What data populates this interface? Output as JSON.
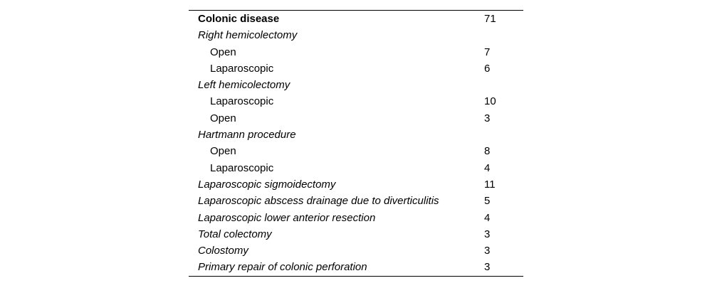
{
  "table": {
    "rows": [
      {
        "label": "Colonic disease",
        "value": "71",
        "level": "header"
      },
      {
        "label": "Right hemicolectomy",
        "value": "",
        "level": "group"
      },
      {
        "label": "Open",
        "value": "7",
        "level": "item"
      },
      {
        "label": "Laparoscopic",
        "value": "6",
        "level": "item"
      },
      {
        "label": "Left hemicolectomy",
        "value": "",
        "level": "group"
      },
      {
        "label": "Laparoscopic",
        "value": "10",
        "level": "item"
      },
      {
        "label": "Open",
        "value": "3",
        "level": "item"
      },
      {
        "label": "Hartmann procedure",
        "value": "",
        "level": "group"
      },
      {
        "label": "Open",
        "value": "8",
        "level": "item"
      },
      {
        "label": "Laparoscopic",
        "value": "4",
        "level": "item"
      },
      {
        "label": "Laparoscopic sigmoidectomy",
        "value": "11",
        "level": "group"
      },
      {
        "label": "Laparoscopic abscess drainage due to diverticulitis",
        "value": "5",
        "level": "group"
      },
      {
        "label": "Laparoscopic lower anterior resection",
        "value": "4",
        "level": "group"
      },
      {
        "label": "Total colectomy",
        "value": "3",
        "level": "group"
      },
      {
        "label": "Colostomy",
        "value": "3",
        "level": "group"
      },
      {
        "label": "Primary repair of colonic perforation",
        "value": "3",
        "level": "group"
      }
    ],
    "colors": {
      "text": "#000000",
      "rule": "#000000",
      "background": "#ffffff"
    }
  }
}
